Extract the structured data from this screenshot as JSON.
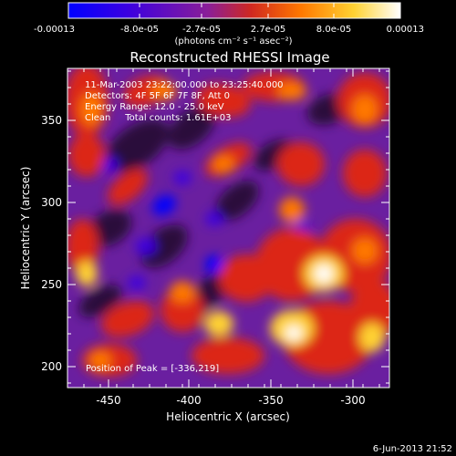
{
  "colorbar": {
    "tick_labels": [
      "-0.00013",
      "-8.0e-05",
      "-2.7e-05",
      "2.7e-05",
      "8.0e-05",
      "0.00013"
    ],
    "unit_label": "(photons cm⁻² s⁻¹ asec⁻²)",
    "colors": [
      "#0000ff",
      "#3c00e0",
      "#a01e8c",
      "#dc2814",
      "#ff7800",
      "#ffd232",
      "#ffffff"
    ]
  },
  "image": {
    "title": "Reconstructed RHESSI Image",
    "annotation_lines": [
      "11-Mar-2003 23:22:00.000 to 23:25:40.000",
      "Detectors: 4F 5F 6F 7F 8F, Att 0",
      "Energy Range: 12.0 - 25.0 keV",
      "Clean     Total counts: 1.61E+03"
    ],
    "peak_label": "Position of Peak = [-336,219]",
    "x_axis": {
      "label": "Heliocentric X (arcsec)",
      "ticks": [
        "-450",
        "-400",
        "-350",
        "-300"
      ],
      "range": [
        -475,
        -282
      ]
    },
    "y_axis": {
      "label": "Heliocentric Y (arcsec)",
      "ticks": [
        "200",
        "250",
        "300",
        "350"
      ],
      "range": [
        187,
        385
      ]
    }
  },
  "footer": {
    "date": "6-Jun-2013 21:52"
  }
}
